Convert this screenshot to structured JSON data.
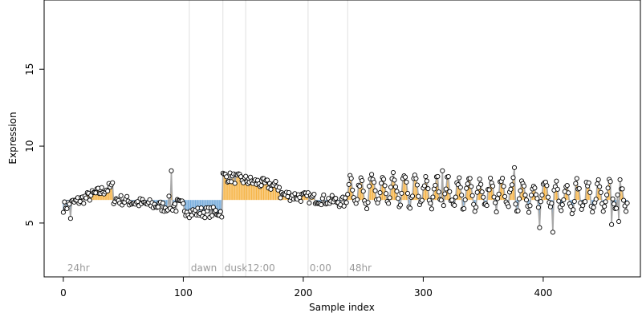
{
  "chart_data": {
    "type": "scatter",
    "title": "",
    "xlabel": "Sample index",
    "ylabel": "Expression",
    "xlim": [
      -16,
      481
    ],
    "ylim": [
      1.5,
      19.5
    ],
    "xticks": [
      0,
      100,
      200,
      300,
      400
    ],
    "yticks": [
      5,
      10,
      15
    ],
    "grid": false,
    "legend": "none",
    "colors": {
      "point_fill": "#ffffff",
      "point_stroke": "#000000",
      "line": "#a8a8a8",
      "above": "#f5a623",
      "below": "#5b9bd5",
      "marker_line": "#e0e0e0",
      "annotation": "#9a9a9a"
    },
    "baseline": 6.5,
    "annotations": [
      {
        "x": 2,
        "label": "24hr"
      },
      {
        "x": 105,
        "label": "dawn"
      },
      {
        "x": 133,
        "label": "dusk"
      },
      {
        "x": 152,
        "label": "12:00"
      },
      {
        "x": 204,
        "label": "0:00"
      },
      {
        "x": 237,
        "label": "48hr"
      }
    ],
    "vlines": [
      105,
      133,
      152,
      204,
      237
    ],
    "segments": [
      {
        "x_start": 0,
        "x_end": 41,
        "mean": 6.7,
        "slope": 0.032,
        "noise": 0.35
      },
      {
        "x_start": 42,
        "x_end": 86,
        "mean": 6.3,
        "slope": -0.012,
        "noise": 0.35
      },
      {
        "x_start": 87,
        "x_end": 104,
        "mean": 6.1,
        "slope": -0.02,
        "noise": 0.5
      },
      {
        "x_start": 105,
        "x_end": 132,
        "mean": 5.7,
        "slope": 0.0,
        "noise": 0.35
      },
      {
        "x_start": 133,
        "x_end": 180,
        "mean": 7.7,
        "slope": -0.015,
        "noise": 0.35
      },
      {
        "x_start": 181,
        "x_end": 236,
        "mean": 6.6,
        "slope": -0.01,
        "noise": 0.35
      },
      {
        "x_start": 237,
        "x_end": 470,
        "mean": 6.9,
        "slope": -0.002,
        "amplitude": 0.9,
        "period": 9,
        "noise": 0.35
      }
    ],
    "highlights": [
      {
        "x": 6,
        "y": 5.3
      },
      {
        "x": 90,
        "y": 8.4
      },
      {
        "x": 240,
        "y": 7.9
      },
      {
        "x": 316,
        "y": 8.4
      },
      {
        "x": 376,
        "y": 8.6
      },
      {
        "x": 397,
        "y": 4.7
      },
      {
        "x": 408,
        "y": 4.4
      },
      {
        "x": 457,
        "y": 4.9
      },
      {
        "x": 463,
        "y": 5.1
      }
    ]
  }
}
